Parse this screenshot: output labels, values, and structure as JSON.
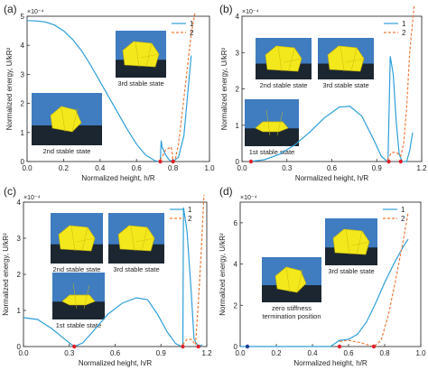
{
  "colors": {
    "curve1": "#2e9fd9",
    "curve2": "#f07a3a",
    "marker": "#e0202a",
    "marker_alt": "#1e3f9a",
    "photo_bg": "#3f7cc0",
    "photo_table": "#1c2630",
    "prism": "#f3e81c"
  },
  "legend_labels": [
    "1",
    "2"
  ],
  "chart_data": [
    {
      "panel_label": "(a)",
      "type": "line",
      "xlabel": "Normalized height, h/R",
      "ylabel": "Normalized energy, U/kR²",
      "y_multiplier": "×10⁻⁴",
      "xlim": [
        0.0,
        1.0
      ],
      "ylim": [
        0,
        5
      ],
      "xticks": [
        "0.0",
        "0.2",
        "0.4",
        "0.6",
        "0.8",
        "1.0"
      ],
      "yticks": [
        "0",
        "1",
        "2",
        "3",
        "4",
        "5"
      ],
      "legend_position": "top-right",
      "series": [
        {
          "name": "1",
          "style": "solid",
          "x": [
            0.0,
            0.05,
            0.1,
            0.15,
            0.2,
            0.25,
            0.3,
            0.35,
            0.4,
            0.45,
            0.5,
            0.55,
            0.6,
            0.65,
            0.7,
            0.72,
            0.73,
            0.735,
            0.74,
            0.76,
            0.78,
            0.8,
            0.83,
            0.86,
            0.88,
            0.9
          ],
          "y": [
            4.85,
            4.84,
            4.8,
            4.7,
            4.5,
            4.2,
            3.8,
            3.3,
            2.75,
            2.2,
            1.65,
            1.1,
            0.6,
            0.22,
            0.03,
            0.0,
            0.0,
            0.72,
            0.5,
            0.22,
            0.05,
            0.0,
            0.15,
            0.9,
            2.3,
            3.65
          ]
        },
        {
          "name": "2",
          "style": "dashed",
          "x": [
            0.73,
            0.76,
            0.79,
            0.8,
            0.81,
            0.83,
            0.86,
            0.88,
            0.9,
            0.92
          ],
          "y": [
            0.05,
            0.4,
            0.5,
            0.05,
            0.0,
            0.6,
            2.2,
            3.3,
            4.4,
            5.1
          ]
        }
      ],
      "markers": [
        {
          "x": 0.73,
          "y": 0.0
        },
        {
          "x": 0.8,
          "y": 0.0
        }
      ],
      "photos": [
        {
          "caption": "3rd stable state"
        },
        {
          "caption": "2nd stable state"
        }
      ]
    },
    {
      "panel_label": "(b)",
      "type": "line",
      "xlabel": "Normalized height, h/R",
      "ylabel": "Normalized energy, U/kR²",
      "y_multiplier": "×10⁻⁴",
      "xlim": [
        0.0,
        1.2
      ],
      "ylim": [
        0,
        4
      ],
      "xticks": [
        "0.0",
        "0.3",
        "0.6",
        "0.9",
        "1.2"
      ],
      "yticks": [
        "0",
        "1",
        "2",
        "3",
        "4"
      ],
      "legend_position": "top-right",
      "series": [
        {
          "name": "1",
          "style": "solid",
          "x": [
            0.05,
            0.15,
            0.25,
            0.35,
            0.45,
            0.55,
            0.65,
            0.72,
            0.8,
            0.88,
            0.93,
            0.97,
            0.975,
            0.99,
            1.01,
            1.03,
            1.05,
            1.07,
            1.1,
            1.12,
            1.14
          ],
          "y": [
            0.0,
            0.05,
            0.2,
            0.45,
            0.8,
            1.2,
            1.5,
            1.52,
            1.25,
            0.6,
            0.15,
            0.0,
            0.0,
            2.9,
            2.4,
            1.1,
            0.2,
            0.0,
            0.0,
            0.3,
            0.8
          ]
        },
        {
          "name": "2",
          "style": "dashed",
          "x": [
            0.97,
            1.0,
            1.03,
            1.06,
            1.08,
            1.1,
            1.12,
            1.15
          ],
          "y": [
            0.05,
            0.25,
            0.25,
            0.15,
            0.5,
            1.5,
            3.0,
            4.3
          ]
        }
      ],
      "markers": [
        {
          "x": 0.06,
          "y": 0.0
        },
        {
          "x": 0.98,
          "y": 0.0
        },
        {
          "x": 1.06,
          "y": 0.0
        }
      ],
      "photos": [
        {
          "caption": "2nd stable state"
        },
        {
          "caption": "3rd stable state"
        },
        {
          "caption": "1st stable state"
        }
      ]
    },
    {
      "panel_label": "(c)",
      "type": "line",
      "xlabel": "Normalized height, h/R",
      "ylabel": "Normalized energy, U/kR²",
      "y_multiplier": "×10⁻⁴",
      "xlim": [
        0.0,
        1.3
      ],
      "ylim": [
        0,
        4
      ],
      "xticks": [
        "0.0",
        "0.3",
        "0.6",
        "0.9",
        "1.2"
      ],
      "yticks": [
        "0",
        "1",
        "2",
        "3",
        "4"
      ],
      "legend_position": "top-right",
      "series": [
        {
          "name": "1",
          "style": "solid",
          "x": [
            0.0,
            0.1,
            0.2,
            0.3,
            0.36,
            0.42,
            0.5,
            0.6,
            0.7,
            0.8,
            0.88,
            0.95,
            1.02,
            1.08,
            1.12,
            1.13,
            1.135,
            1.16,
            1.19,
            1.21,
            1.24,
            1.27
          ],
          "y": [
            0.8,
            0.75,
            0.5,
            0.18,
            0.0,
            0.1,
            0.45,
            0.9,
            1.2,
            1.35,
            1.3,
            0.9,
            0.4,
            0.08,
            0.0,
            0.0,
            3.85,
            3.2,
            1.5,
            0.2,
            0.0,
            0.05
          ]
        },
        {
          "name": "2",
          "style": "dashed",
          "x": [
            1.13,
            1.16,
            1.19,
            1.22,
            1.24,
            1.26,
            1.28
          ],
          "y": [
            0.05,
            0.2,
            0.2,
            0.05,
            1.2,
            2.6,
            4.2
          ]
        }
      ],
      "markers": [
        {
          "x": 0.36,
          "y": 0.0
        },
        {
          "x": 1.13,
          "y": 0.0
        },
        {
          "x": 1.24,
          "y": 0.0
        }
      ],
      "photos": [
        {
          "caption": "2nd stable state"
        },
        {
          "caption": "3rd stable state"
        },
        {
          "caption": "1st stable state"
        }
      ]
    },
    {
      "panel_label": "(d)",
      "type": "line",
      "xlabel": "Normalized height, h/R",
      "ylabel": "Normalized energy, U/kR²",
      "y_multiplier": "×10⁻⁴",
      "xlim": [
        0.0,
        1.0
      ],
      "ylim": [
        0,
        7
      ],
      "xticks": [
        "0.0",
        "0.2",
        "0.4",
        "0.6",
        "0.8",
        "1.0"
      ],
      "yticks": [
        "0",
        "2",
        "4",
        "6"
      ],
      "legend_position": "top-right",
      "series": [
        {
          "name": "1",
          "style": "solid",
          "x": [
            0.0,
            0.1,
            0.2,
            0.3,
            0.4,
            0.5,
            0.55,
            0.6,
            0.65,
            0.7,
            0.75,
            0.8,
            0.85,
            0.9,
            0.93
          ],
          "y": [
            0.0,
            0.0,
            0.0,
            0.0,
            0.0,
            0.0,
            0.3,
            0.35,
            0.6,
            1.2,
            2.1,
            3.1,
            4.0,
            4.8,
            5.2
          ]
        },
        {
          "name": "2",
          "style": "dashed",
          "x": [
            0.55,
            0.6,
            0.66,
            0.7,
            0.74,
            0.78,
            0.82,
            0.86,
            0.9,
            0.93
          ],
          "y": [
            0.25,
            0.3,
            0.2,
            0.1,
            0.0,
            0.3,
            1.5,
            3.2,
            5.0,
            6.5
          ]
        }
      ],
      "markers": [
        {
          "x": 0.04,
          "y": 0.0,
          "alt": true
        },
        {
          "x": 0.55,
          "y": 0.0
        },
        {
          "x": 0.74,
          "y": 0.0
        }
      ],
      "photos": [
        {
          "caption": "3rd stable state"
        },
        {
          "caption": "zero stiffness\ntermination position"
        }
      ]
    }
  ]
}
